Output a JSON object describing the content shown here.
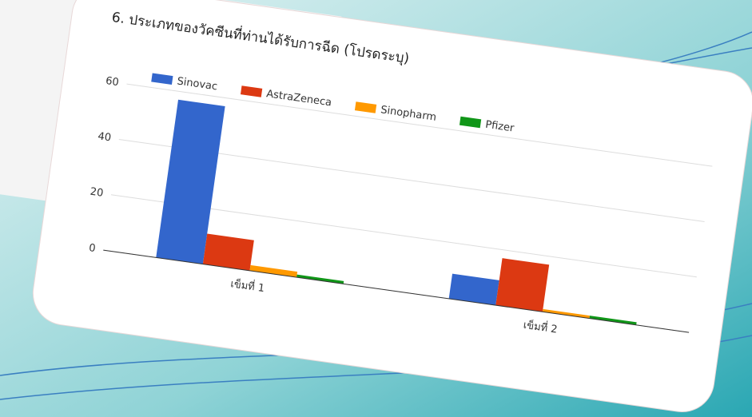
{
  "chart_data": {
    "type": "bar",
    "title": "6. ประเภทของวัคซีนที่ท่านได้รับการฉีด (โปรดระบุ)",
    "categories": [
      "เข็มที่ 1",
      "เข็มที่ 2"
    ],
    "series": [
      {
        "name": "Sinovac",
        "color": "#3366cc",
        "values": [
          57,
          9
        ]
      },
      {
        "name": "AstraZeneca",
        "color": "#dc3912",
        "values": [
          11,
          17
        ]
      },
      {
        "name": "Sinopharm",
        "color": "#ff9900",
        "values": [
          2,
          1
        ]
      },
      {
        "name": "Pfizer",
        "color": "#109618",
        "values": [
          1,
          1
        ]
      }
    ],
    "ylim": [
      0,
      60
    ],
    "yticks": [
      0,
      20,
      40,
      60
    ],
    "grid": true,
    "legend": "top"
  }
}
